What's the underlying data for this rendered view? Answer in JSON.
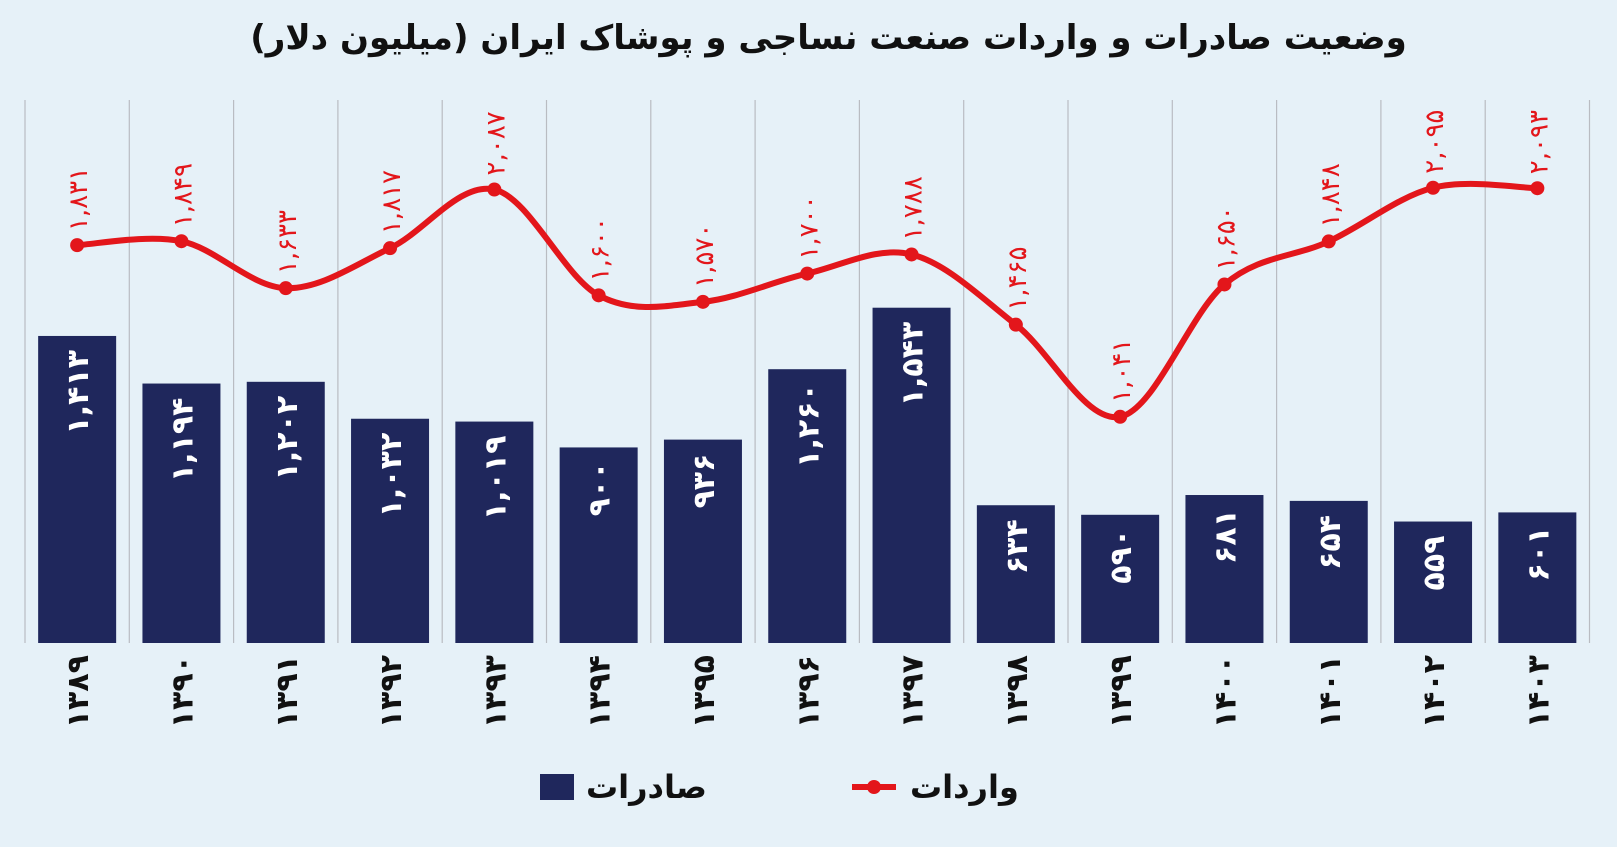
{
  "chart_data": {
    "type": "bar+line",
    "title": "وضعیت صادرات و واردات صنعت نساجی و پوشاک ایران (میلیون دلار)",
    "categories": [
      "۱۳۸۹",
      "۱۳۹۰",
      "۱۳۹۱",
      "۱۳۹۲",
      "۱۳۹۳",
      "۱۳۹۴",
      "۱۳۹۵",
      "۱۳۹۶",
      "۱۳۹۷",
      "۱۳۹۸",
      "۱۳۹۹",
      "۱۴۰۰",
      "۱۴۰۱",
      "۱۴۰۲",
      "۱۴۰۳"
    ],
    "series": [
      {
        "name": "صادرات",
        "type": "bar",
        "color": "#1f275c",
        "values": [
          1413,
          1194,
          1202,
          1032,
          1019,
          900,
          936,
          1260,
          1543,
          634,
          590,
          681,
          654,
          559,
          601
        ],
        "labels": [
          "۱,۴۱۳",
          "۱,۱۹۴",
          "۱,۲۰۲",
          "۱,۰۳۲",
          "۱,۰۱۹",
          "۹۰۰",
          "۹۳۶",
          "۱,۲۶۰",
          "۱,۵۴۳",
          "۶۳۴",
          "۵۹۰",
          "۶۸۱",
          "۶۵۴",
          "۵۵۹",
          "۶۰۱"
        ]
      },
      {
        "name": "واردات",
        "type": "line",
        "color": "#e3161b",
        "values": [
          1831,
          1849,
          1633,
          1817,
          2087,
          1600,
          1570,
          1700,
          1788,
          1465,
          1041,
          1650,
          1848,
          2095,
          2093
        ],
        "labels": [
          "۱,۸۳۱",
          "۱,۸۴۹",
          "۱,۶۳۳",
          "۱,۸۱۷",
          "۲,۰۸۷",
          "۱,۶۰۰",
          "۱,۵۷۰",
          "۱,۷۰۰",
          "۱,۷۸۸",
          "۱,۴۶۵",
          "۱,۰۴۱",
          "۱,۶۵۰",
          "۱,۸۴۸",
          "۲,۰۹۵",
          "۲,۰۹۳"
        ]
      }
    ],
    "ylim": [
      0,
      2960
    ],
    "grid": "vertical",
    "legend": "bottom",
    "xlabel": "",
    "ylabel": ""
  }
}
